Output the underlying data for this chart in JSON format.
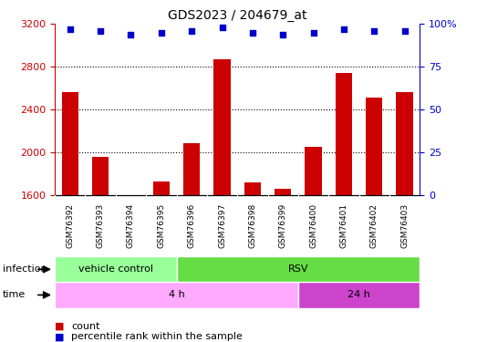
{
  "title": "GDS2023 / 204679_at",
  "samples": [
    "GSM76392",
    "GSM76393",
    "GSM76394",
    "GSM76395",
    "GSM76396",
    "GSM76397",
    "GSM76398",
    "GSM76399",
    "GSM76400",
    "GSM76401",
    "GSM76402",
    "GSM76403"
  ],
  "counts": [
    2560,
    1960,
    1600,
    1730,
    2080,
    2870,
    1720,
    1660,
    2050,
    2740,
    2510,
    2560
  ],
  "percentile_ranks": [
    97,
    96,
    94,
    95,
    96,
    98,
    95,
    94,
    95,
    97,
    96,
    96
  ],
  "ylim_left": [
    1600,
    3200
  ],
  "ylim_right": [
    0,
    100
  ],
  "yticks_left": [
    1600,
    2000,
    2400,
    2800,
    3200
  ],
  "yticks_right": [
    0,
    25,
    50,
    75,
    100
  ],
  "bar_color": "#cc0000",
  "dot_color": "#0000cc",
  "infection_vc_color": "#99ff99",
  "infection_rsv_color": "#66dd44",
  "time_4h_color": "#ffaaff",
  "time_24h_color": "#cc44cc",
  "sample_bg_color": "#c8c8c8",
  "dotted_grid_color": "#000000",
  "legend_count_color": "#cc0000",
  "legend_pct_color": "#0000cc",
  "plot_bg": "#ffffff"
}
